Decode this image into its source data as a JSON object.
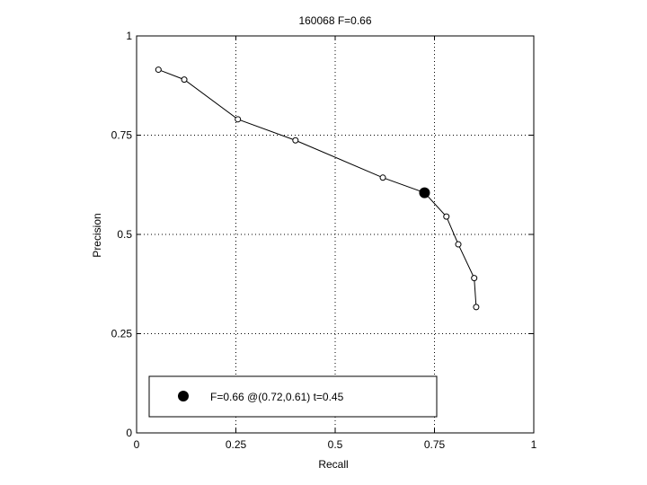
{
  "chart_data": {
    "type": "line",
    "title": "160068 F=0.66",
    "xlabel": "Recall",
    "ylabel": "Precision",
    "xlim": [
      0,
      1
    ],
    "ylim": [
      0,
      1
    ],
    "xticks": [
      0,
      0.25,
      0.5,
      0.75,
      1
    ],
    "yticks": [
      0,
      0.25,
      0.5,
      0.75,
      1
    ],
    "xtick_labels": [
      "0",
      "0.25",
      "0.5",
      "0.75",
      "1"
    ],
    "ytick_labels": [
      "0",
      "0.25",
      "0.5",
      "0.75",
      "1"
    ],
    "grid": true,
    "legend_position": "bottom-left",
    "series": [
      {
        "x": [
          0.055,
          0.12,
          0.255,
          0.4,
          0.62,
          0.725,
          0.78,
          0.81,
          0.85,
          0.855
        ],
        "y": [
          0.915,
          0.89,
          0.79,
          0.737,
          0.643,
          0.605,
          0.545,
          0.475,
          0.39,
          0.317
        ]
      }
    ],
    "highlight": {
      "x": 0.725,
      "y": 0.605,
      "label": "F=0.66 @(0.72,0.61) t=0.45"
    },
    "colors": {
      "line": "#000000",
      "grid": "#000000",
      "background": "#ffffff"
    }
  }
}
